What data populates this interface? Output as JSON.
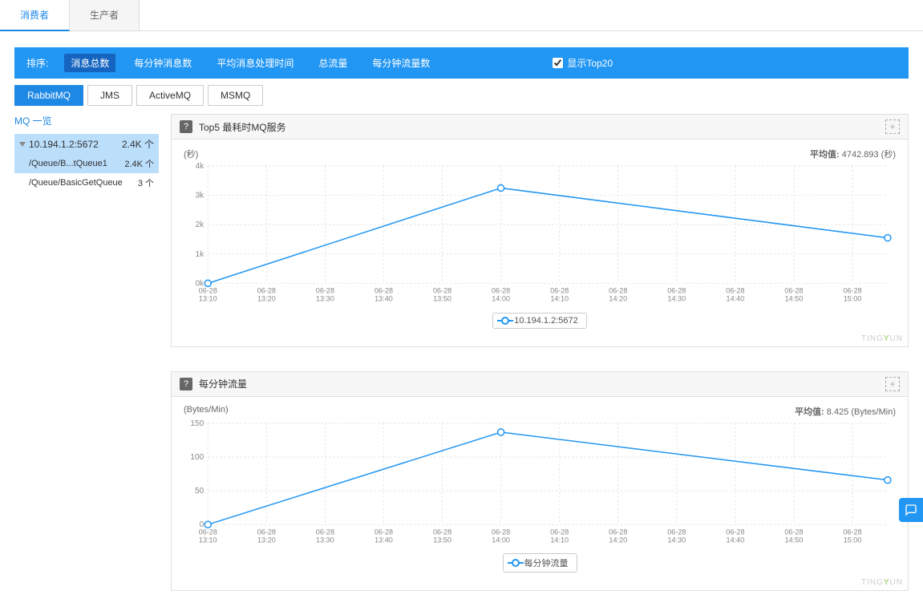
{
  "topTabs": {
    "consumer": "消费者",
    "producer": "生产者",
    "active": 0
  },
  "sortBar": {
    "label": "排序:",
    "items": [
      "消息总数",
      "每分钟消息数",
      "平均消息处理时间",
      "总流量",
      "每分钟流量数"
    ],
    "activeIndex": 0,
    "showTop": "显示Top20",
    "checked": true
  },
  "mqTabs": {
    "items": [
      "RabbitMQ",
      "JMS",
      "ActiveMQ",
      "MSMQ"
    ],
    "activeIndex": 0
  },
  "sidebar": {
    "title": "MQ 一览",
    "root": {
      "label": "10.194.1.2:5672",
      "count": "2.4K 个"
    },
    "children": [
      {
        "label": "/Queue/B...tQueue1",
        "count": "2.4K 个",
        "selected": true
      },
      {
        "label": "/Queue/BasicGetQueue",
        "count": "3 个",
        "selected": false
      }
    ]
  },
  "chart1": {
    "title": "Top5 最耗时MQ服务",
    "yUnit": "(秒)",
    "avgLabel": "平均值:",
    "avgValue": "4742.893 (秒)",
    "type": "line",
    "line_color": "#2196f3",
    "marker": "circle-open",
    "grid_color": "#e0e0e0",
    "grid_dash": "2,3",
    "bg": "#ffffff",
    "xCategories": [
      "06-28\n13:10",
      "06-28\n13:20",
      "06-28\n13:30",
      "06-28\n13:40",
      "06-28\n13:50",
      "06-28\n14:00",
      "06-28\n14:10",
      "06-28\n14:20",
      "06-28\n14:30",
      "06-28\n14:40",
      "06-28\n14:50",
      "06-28\n15:00"
    ],
    "yTicks": [
      0,
      1,
      2,
      3,
      4
    ],
    "yTickLabels": [
      "0k",
      "1k",
      "2k",
      "3k",
      "4k"
    ],
    "ymax": 4,
    "series": [
      {
        "name": "10.194.1.2:5672",
        "points": [
          [
            0,
            0
          ],
          [
            5,
            3.25
          ],
          [
            11.6,
            1.55
          ]
        ]
      }
    ],
    "legend_position": "bottom-center",
    "watermark": "TINGYUN"
  },
  "chart2": {
    "title": "每分钟流量",
    "yUnit": "(Bytes/Min)",
    "avgLabel": "平均值:",
    "avgValue": "8.425 (Bytes/Min)",
    "type": "line",
    "line_color": "#2196f3",
    "marker": "circle-open",
    "grid_color": "#e0e0e0",
    "grid_dash": "2,3",
    "bg": "#ffffff",
    "xCategories": [
      "06-28\n13:10",
      "06-28\n13:20",
      "06-28\n13:30",
      "06-28\n13:40",
      "06-28\n13:50",
      "06-28\n14:00",
      "06-28\n14:10",
      "06-28\n14:20",
      "06-28\n14:30",
      "06-28\n14:40",
      "06-28\n14:50",
      "06-28\n15:00"
    ],
    "yTicks": [
      0,
      50,
      100,
      150
    ],
    "yTickLabels": [
      "0",
      "50",
      "100",
      "150"
    ],
    "ymax": 150,
    "series": [
      {
        "name": "每分钟流量",
        "points": [
          [
            0,
            0
          ],
          [
            5,
            137
          ],
          [
            11.6,
            66
          ]
        ]
      }
    ],
    "legend_position": "bottom-center",
    "watermark": "TINGYUN"
  }
}
